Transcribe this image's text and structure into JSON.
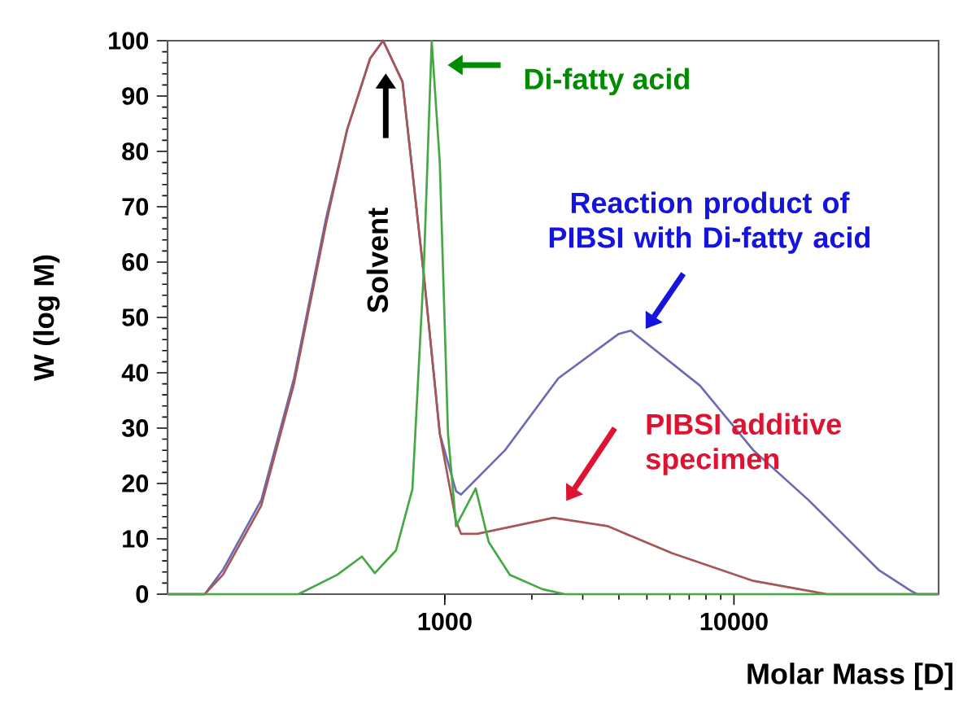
{
  "chart_data": {
    "type": "line",
    "xlabel": "Molar Mass [D]",
    "ylabel": "W (log M)",
    "log": "x",
    "xlim": [
      110,
      51000
    ],
    "ylim": [
      0,
      100
    ],
    "xticks": [
      1000,
      10000
    ],
    "yticks": [
      0,
      10,
      20,
      30,
      40,
      50,
      60,
      70,
      80,
      90,
      100
    ],
    "grid": false,
    "marker": "none",
    "line_style": "solid",
    "series": [
      {
        "color": "#6b6bb3",
        "x": [
          110,
          148,
          171,
          232,
          301,
          389,
          460,
          552,
          612,
          714,
          845,
          961,
          1094,
          1138,
          1615,
          2470,
          3990,
          4400,
          7620,
          11670,
          18100,
          22300,
          31600,
          40900,
          43000,
          51000
        ],
        "values": [
          0,
          0,
          4.4,
          17,
          39,
          68,
          84,
          96.8,
          100,
          92.6,
          58,
          29,
          18.6,
          18,
          26,
          39,
          47,
          47.6,
          37.7,
          26,
          17,
          12.3,
          4.4,
          0.6,
          0,
          0
        ]
      },
      {
        "color": "#a85555",
        "x": [
          110,
          148,
          171,
          232,
          301,
          389,
          460,
          552,
          612,
          714,
          845,
          961,
          1094,
          1138,
          1295,
          2377,
          3650,
          6120,
          11670,
          18100,
          21000,
          51000
        ],
        "values": [
          0,
          0,
          3.5,
          16,
          38,
          67,
          84,
          96.8,
          100,
          92.6,
          58,
          29,
          13.2,
          10.9,
          10.9,
          13.8,
          12.3,
          7.4,
          2.4,
          0.6,
          0,
          0
        ]
      },
      {
        "color": "#45a845",
        "x": [
          110,
          312,
          425,
          517,
          573,
          678,
          773,
          845,
          901,
          961,
          1026,
          1094,
          1279,
          1419,
          1679,
          2175,
          2600,
          51000
        ],
        "values": [
          0,
          0,
          3.5,
          6.8,
          3.8,
          7.9,
          19,
          58,
          100,
          78,
          29,
          12.3,
          19.1,
          9.4,
          3.5,
          0.9,
          0,
          0
        ]
      }
    ],
    "annotations": [
      "Solvent",
      "Di-fatty acid",
      "Reaction product of PIBSI with Di-fatty acid",
      "PIBSI additive specimen"
    ]
  }
}
